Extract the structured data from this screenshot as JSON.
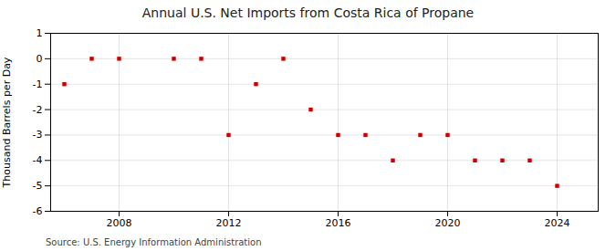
{
  "chart_data": {
    "type": "scatter",
    "title": "Annual U.S. Net Imports from Costa Rica of Propane",
    "ylabel": "Thousand Barrels per Day",
    "source": "Source: U.S. Energy Information Administration",
    "x": [
      2006,
      2007,
      2008,
      2010,
      2011,
      2012,
      2013,
      2014,
      2015,
      2016,
      2017,
      2018,
      2019,
      2020,
      2021,
      2022,
      2023,
      2024
    ],
    "values": [
      -1,
      0,
      0,
      0,
      0,
      -3,
      -1,
      0,
      -2,
      -3,
      -3,
      -4,
      -3,
      -3,
      -4,
      -4,
      -4,
      -5
    ],
    "color": "#cc0000",
    "marker": "square",
    "xlim": [
      2005.5,
      2025.5
    ],
    "ylim": [
      -6,
      1
    ],
    "xticks": [
      2008,
      2012,
      2016,
      2020,
      2024
    ],
    "yticks": [
      1,
      0,
      -1,
      -2,
      -3,
      -4,
      -5,
      -6
    ],
    "grid": true
  }
}
